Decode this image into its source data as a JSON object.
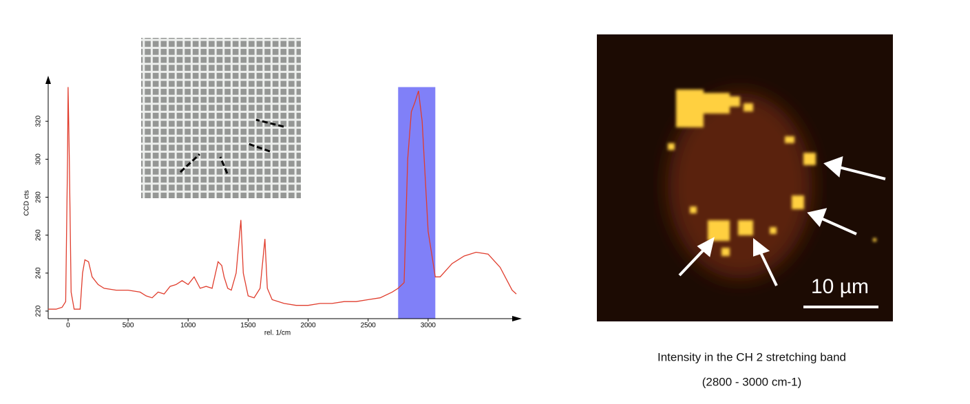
{
  "chart_data": {
    "type": "line",
    "x_label": "rel. 1/cm",
    "y_label": "CCD cts",
    "x": [
      -166,
      -100,
      -50,
      -20,
      -5,
      0,
      10,
      25,
      50,
      100,
      120,
      140,
      170,
      200,
      250,
      300,
      400,
      500,
      600,
      650,
      700,
      750,
      800,
      850,
      900,
      950,
      1000,
      1050,
      1100,
      1150,
      1200,
      1250,
      1280,
      1300,
      1330,
      1360,
      1400,
      1440,
      1460,
      1500,
      1550,
      1600,
      1640,
      1660,
      1700,
      1800,
      1900,
      2000,
      2100,
      2200,
      2300,
      2400,
      2500,
      2600,
      2700,
      2750,
      2800,
      2830,
      2860,
      2890,
      2920,
      2950,
      3000,
      3030,
      3060,
      3100,
      3200,
      3300,
      3400,
      3500,
      3600,
      3700,
      3735
    ],
    "values": [
      221,
      221,
      222,
      225,
      300,
      338,
      300,
      230,
      221,
      221,
      240,
      247,
      246,
      238,
      234,
      232,
      231,
      231,
      230,
      228,
      227,
      230,
      229,
      233,
      234,
      236,
      234,
      238,
      232,
      233,
      232,
      246,
      244,
      238,
      232,
      231,
      240,
      268,
      240,
      228,
      227,
      232,
      258,
      232,
      226,
      224,
      223,
      223,
      224,
      224,
      225,
      225,
      226,
      227,
      230,
      232,
      235,
      300,
      325,
      330,
      336,
      320,
      262,
      250,
      238,
      238,
      245,
      249,
      251,
      250,
      243,
      231,
      229
    ],
    "color": "#e03c2c",
    "highlight_range": [
      2750,
      3060
    ],
    "highlight_top": 338,
    "highlight_color": "#8080f8",
    "xlim": [
      -166,
      3735
    ],
    "ylim": [
      216,
      344
    ],
    "xticks": [
      0,
      500,
      1000,
      1500,
      2000,
      2500,
      3000
    ],
    "yticks": [
      220,
      240,
      260,
      280,
      300,
      320
    ]
  },
  "image": {
    "scale_bar_label": "10 µm",
    "caption": [
      "Intensity in the CH 2 stretching band",
      "(2800 - 3000 cm-1)"
    ]
  }
}
